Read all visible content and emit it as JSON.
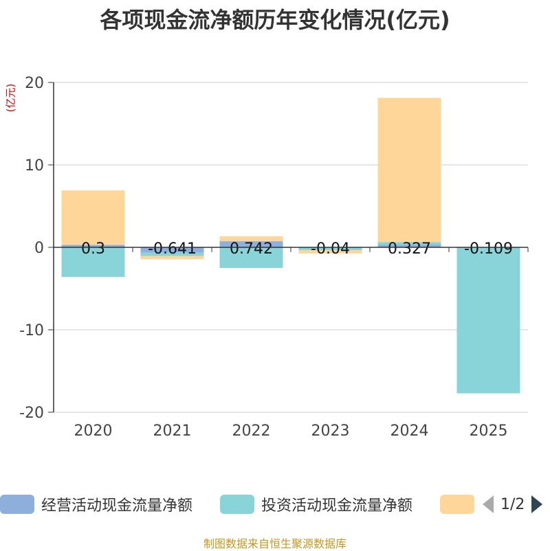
{
  "title": "各项现金流净额历年变化情况(亿元)",
  "unit_label": "(亿元)",
  "source": "制图数据来自恒生聚源数据库",
  "legend": {
    "items": [
      {
        "label": "经营活动现金流量净额",
        "color": "#8eaedc"
      },
      {
        "label": "投资活动现金流量净额",
        "color": "#88d4d8"
      },
      {
        "label": "",
        "color": "#ffd699"
      }
    ],
    "page": "1/2"
  },
  "chart_data": {
    "type": "bar",
    "stacked": true,
    "categories": [
      "2020",
      "2021",
      "2022",
      "2023",
      "2024",
      "2025"
    ],
    "ylim": [
      -20,
      20
    ],
    "yticks": [
      -20,
      -10,
      0,
      10,
      20
    ],
    "grid": true,
    "series": [
      {
        "name": "经营活动现金流量净额",
        "color": "#8eaedc",
        "values": [
          0.3,
          -0.641,
          0.742,
          -0.04,
          0.327,
          -0.109
        ],
        "labels": [
          "0.3",
          "-0.641",
          "0.742",
          "-0.04",
          "0.327",
          "-0.109"
        ]
      },
      {
        "name": "投资活动现金流量净额",
        "color": "#88d4d8",
        "values": [
          -3.6,
          -0.4,
          -2.5,
          -0.3,
          0.3,
          -17.6
        ]
      },
      {
        "name": "",
        "color": "#ffd699",
        "values": [
          6.6,
          -0.4,
          0.6,
          -0.4,
          17.5,
          0
        ]
      }
    ]
  }
}
